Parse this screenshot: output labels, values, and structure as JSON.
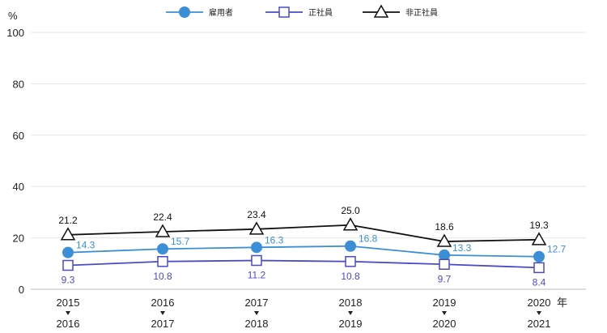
{
  "chart_data": {
    "type": "line",
    "y_unit": "%",
    "x_unit": "年",
    "categories": [
      [
        "2015",
        "2016"
      ],
      [
        "2016",
        "2017"
      ],
      [
        "2017",
        "2018"
      ],
      [
        "2018",
        "2019"
      ],
      [
        "2019",
        "2020"
      ],
      [
        "2020",
        "2021"
      ]
    ],
    "ylim": [
      0,
      100
    ],
    "yticks": [
      0,
      20,
      40,
      60,
      80,
      100
    ],
    "grid": true,
    "legend_position": "top-center",
    "series": [
      {
        "name": "雇用者",
        "marker": "circle",
        "color": "#3b8fd6",
        "values": [
          14.3,
          15.7,
          16.3,
          16.8,
          13.3,
          12.7
        ]
      },
      {
        "name": "正社員",
        "marker": "square",
        "color": "#4a4ac8",
        "values": [
          9.3,
          10.8,
          11.2,
          10.8,
          9.7,
          8.4
        ]
      },
      {
        "name": "非正社員",
        "marker": "triangle",
        "color": "#111111",
        "values": [
          21.2,
          22.4,
          23.4,
          25.0,
          18.6,
          19.3
        ]
      }
    ]
  }
}
